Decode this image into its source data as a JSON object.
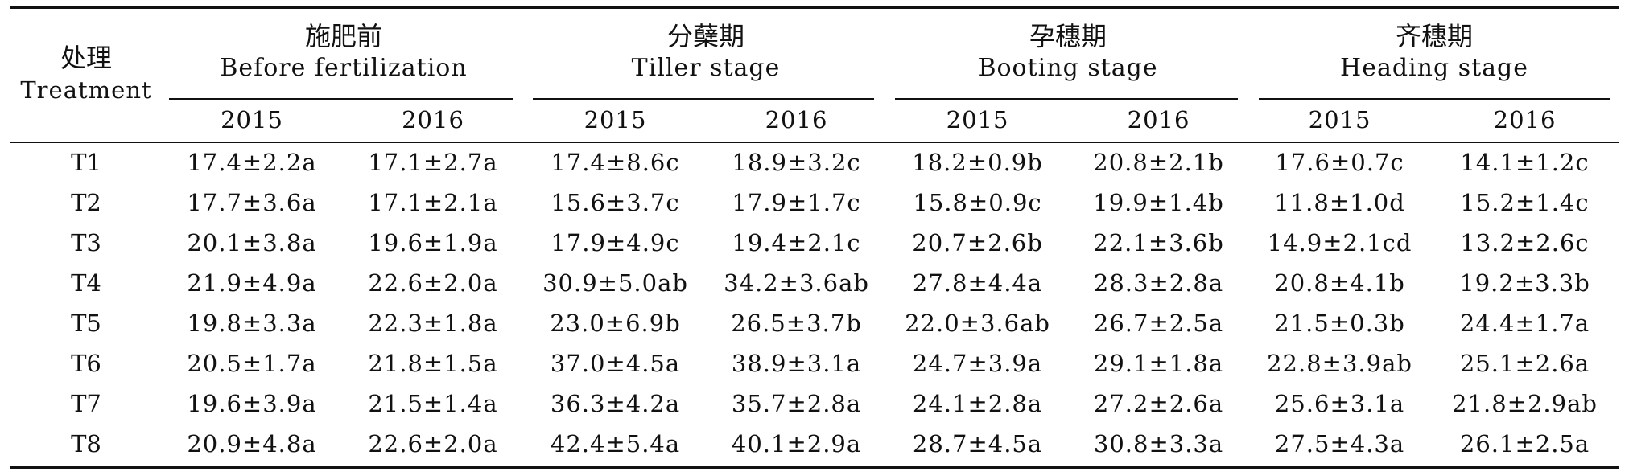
{
  "header": {
    "treatment_zh": "处理",
    "treatment_en": "Treatment",
    "stages": [
      {
        "zh": "施肥前",
        "en": "Before fertilization"
      },
      {
        "zh": "分蘖期",
        "en": "Tiller stage"
      },
      {
        "zh": "孕穗期",
        "en": "Booting stage"
      },
      {
        "zh": "齐穗期",
        "en": "Heading stage"
      }
    ],
    "years": [
      "2015",
      "2016",
      "2015",
      "2016",
      "2015",
      "2016",
      "2015",
      "2016"
    ]
  },
  "rows": [
    {
      "t": "T1",
      "v": [
        "17.4±2.2a",
        "17.1±2.7a",
        "17.4±8.6c",
        "18.9±3.2c",
        "18.2±0.9b",
        "20.8±2.1b",
        "17.6±0.7c",
        "14.1±1.2c"
      ]
    },
    {
      "t": "T2",
      "v": [
        "17.7±3.6a",
        "17.1±2.1a",
        "15.6±3.7c",
        "17.9±1.7c",
        "15.8±0.9c",
        "19.9±1.4b",
        "11.8±1.0d",
        "15.2±1.4c"
      ]
    },
    {
      "t": "T3",
      "v": [
        "20.1±3.8a",
        "19.6±1.9a",
        "17.9±4.9c",
        "19.4±2.1c",
        "20.7±2.6b",
        "22.1±3.6b",
        "14.9±2.1cd",
        "13.2±2.6c"
      ]
    },
    {
      "t": "T4",
      "v": [
        "21.9±4.9a",
        "22.6±2.0a",
        "30.9±5.0ab",
        "34.2±3.6ab",
        "27.8±4.4a",
        "28.3±2.8a",
        "20.8±4.1b",
        "19.2±3.3b"
      ]
    },
    {
      "t": "T5",
      "v": [
        "19.8±3.3a",
        "22.3±1.8a",
        "23.0±6.9b",
        "26.5±3.7b",
        "22.0±3.6ab",
        "26.7±2.5a",
        "21.5±0.3b",
        "24.4±1.7a"
      ]
    },
    {
      "t": "T6",
      "v": [
        "20.5±1.7a",
        "21.8±1.5a",
        "37.0±4.5a",
        "38.9±3.1a",
        "24.7±3.9a",
        "29.1±1.8a",
        "22.8±3.9ab",
        "25.1±2.6a"
      ]
    },
    {
      "t": "T7",
      "v": [
        "19.6±3.9a",
        "21.5±1.4a",
        "36.3±4.2a",
        "35.7±2.8a",
        "24.1±2.8a",
        "27.2±2.6a",
        "25.6±3.1a",
        "21.8±2.9ab"
      ]
    },
    {
      "t": "T8",
      "v": [
        "20.9±4.8a",
        "22.6±2.0a",
        "42.4±5.4a",
        "40.1±2.9a",
        "28.7±4.5a",
        "30.8±3.3a",
        "27.5±4.3a",
        "26.1±2.5a"
      ]
    }
  ]
}
